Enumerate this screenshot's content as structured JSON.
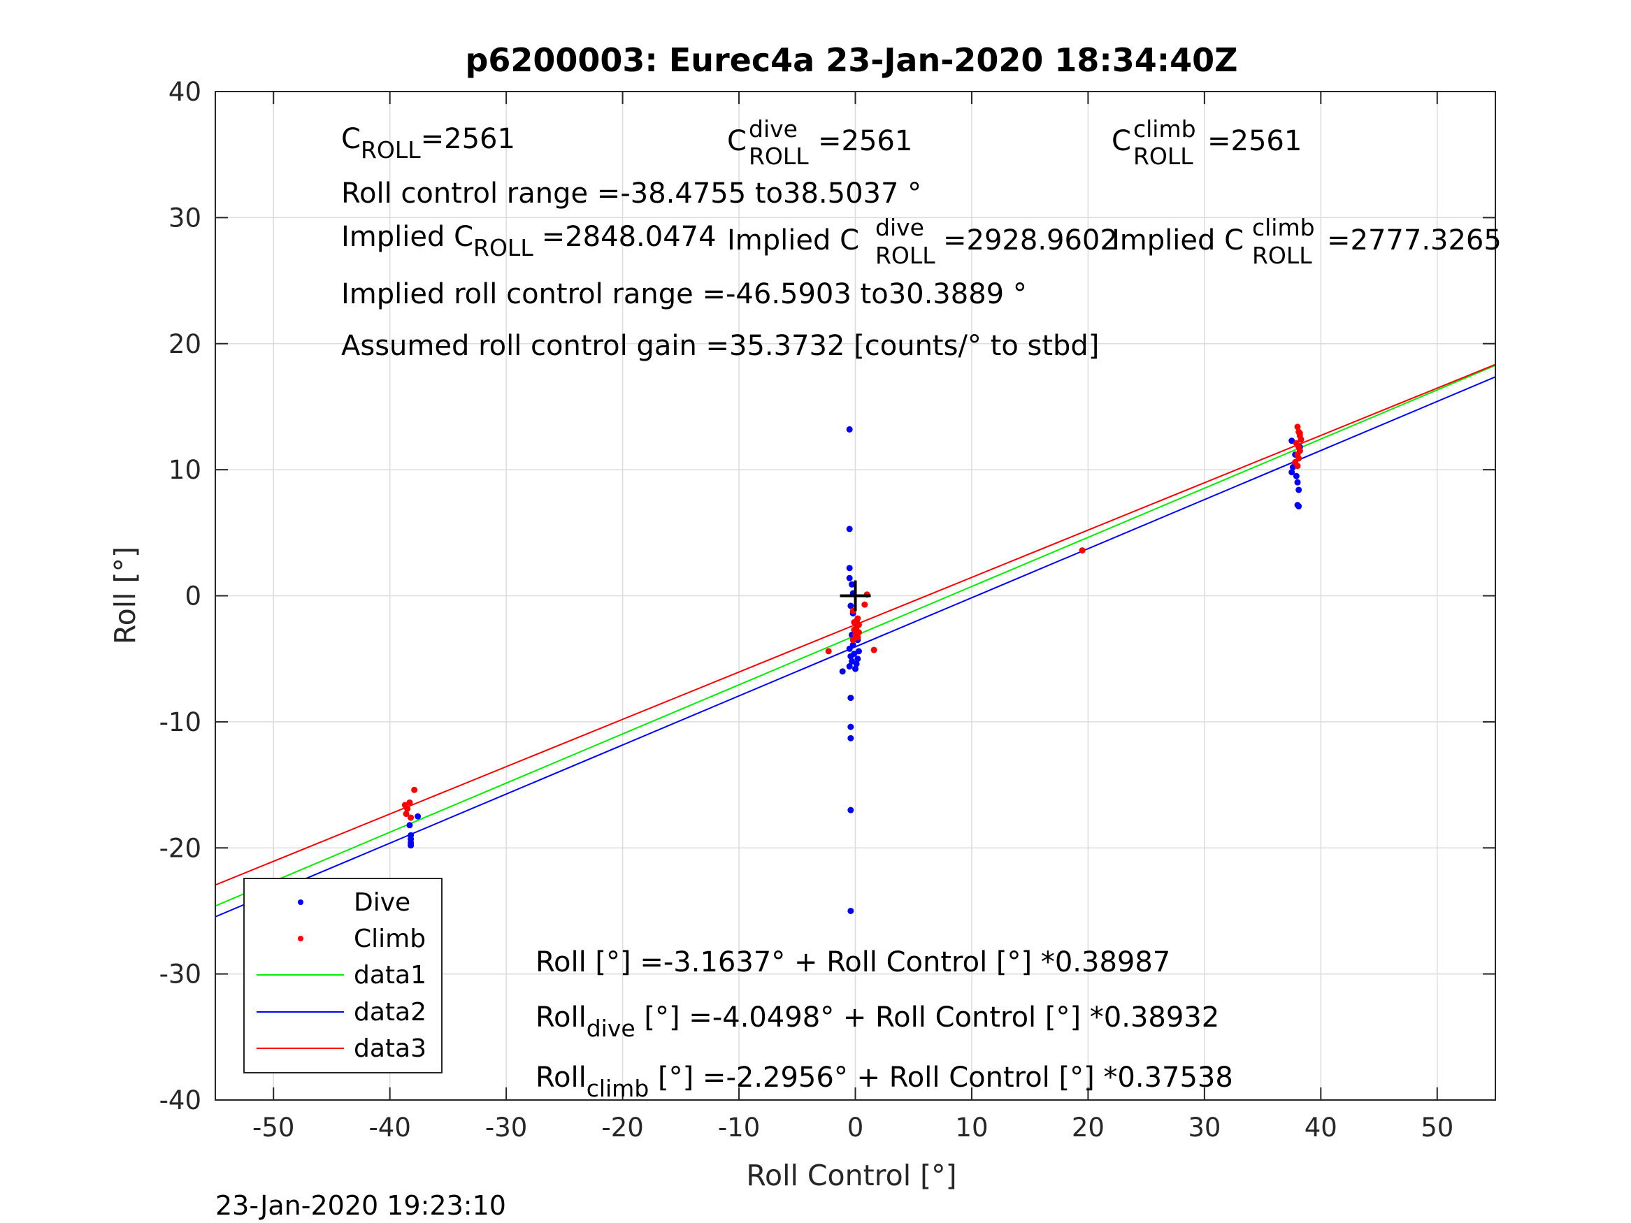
{
  "chart_data": {
    "type": "scatter",
    "title": "p6200003: Eurec4a 23-Jan-2020 18:34:40Z",
    "xlabel": "Roll Control [°]",
    "ylabel": "Roll [°]",
    "xlim": [
      -55,
      55
    ],
    "ylim": [
      -40,
      40
    ],
    "xticks": [
      -50,
      -40,
      -30,
      -20,
      -10,
      0,
      10,
      20,
      30,
      40,
      50
    ],
    "xtick_labels": [
      "-50",
      "-40",
      "-30",
      "-20",
      "-10",
      "0",
      "10",
      "20",
      "30",
      "40",
      "50"
    ],
    "yticks": [
      -40,
      -30,
      -20,
      -10,
      0,
      10,
      20,
      30,
      40
    ],
    "ytick_labels": [
      "-40",
      "-30",
      "-20",
      "-10",
      "0",
      "10",
      "20",
      "30",
      "40"
    ],
    "grid": true,
    "legend_position": "lower-left",
    "colors": {
      "dive": "#0000ff",
      "climb": "#ff0000",
      "data1": "#00ee00",
      "data2": "#0000ff",
      "data3": "#ff0000",
      "grid": "#dcdcdc"
    },
    "series": [
      {
        "name": "Dive",
        "kind": "points",
        "color": "#0000ff",
        "points": [
          [
            -0.5,
            13.2
          ],
          [
            -0.5,
            5.3
          ],
          [
            -0.5,
            2.2
          ],
          [
            -0.5,
            1.4
          ],
          [
            -0.3,
            0.9
          ],
          [
            -0.2,
            0.2
          ],
          [
            -0.4,
            -0.8
          ],
          [
            -0.2,
            -1.4
          ],
          [
            0.1,
            -2.0
          ],
          [
            -0.3,
            -3.1
          ],
          [
            0.2,
            -3.5
          ],
          [
            -0.2,
            -3.9
          ],
          [
            -0.5,
            -4.2
          ],
          [
            0.3,
            -4.4
          ],
          [
            -0.1,
            -4.6
          ],
          [
            -0.4,
            -4.8
          ],
          [
            0.2,
            -5.0
          ],
          [
            -0.3,
            -5.2
          ],
          [
            0.1,
            -5.4
          ],
          [
            -0.5,
            -5.6
          ],
          [
            0.0,
            -5.8
          ],
          [
            -1.1,
            -6.0
          ],
          [
            -0.4,
            -8.1
          ],
          [
            -0.4,
            -10.4
          ],
          [
            -0.4,
            -11.3
          ],
          [
            -0.4,
            -17.0
          ],
          [
            -0.4,
            -25.0
          ],
          [
            -38.3,
            -18.2
          ],
          [
            -38.2,
            -19.0
          ],
          [
            -38.2,
            -19.3
          ],
          [
            -38.2,
            -19.6
          ],
          [
            -38.2,
            -19.8
          ],
          [
            -37.6,
            -17.5
          ],
          [
            37.5,
            12.3
          ],
          [
            37.5,
            9.8
          ],
          [
            37.8,
            10.5
          ],
          [
            37.9,
            9.5
          ],
          [
            38.0,
            9.0
          ],
          [
            38.1,
            8.4
          ],
          [
            38.0,
            7.2
          ],
          [
            38.1,
            7.1
          ],
          [
            37.6,
            10.2
          ],
          [
            37.8,
            11.2
          ],
          [
            38.2,
            11.8
          ]
        ]
      },
      {
        "name": "Climb",
        "kind": "points",
        "color": "#ff0000",
        "points": [
          [
            1.0,
            0.1
          ],
          [
            0.8,
            -0.7
          ],
          [
            -0.2,
            -1.2
          ],
          [
            0.2,
            -1.8
          ],
          [
            -0.1,
            -2.1
          ],
          [
            0.3,
            -2.3
          ],
          [
            0.1,
            -2.5
          ],
          [
            -0.1,
            -2.7
          ],
          [
            0.3,
            -2.9
          ],
          [
            0.0,
            -3.1
          ],
          [
            0.2,
            -3.3
          ],
          [
            -0.2,
            -3.5
          ],
          [
            -2.3,
            -4.4
          ],
          [
            1.6,
            -4.3
          ],
          [
            -38.7,
            -16.6
          ],
          [
            -38.5,
            -16.9
          ],
          [
            -38.3,
            -16.4
          ],
          [
            -38.6,
            -17.3
          ],
          [
            -38.2,
            -17.6
          ],
          [
            -37.9,
            -15.4
          ],
          [
            38.0,
            13.4
          ],
          [
            38.1,
            13.0
          ],
          [
            38.2,
            12.7
          ],
          [
            38.3,
            12.4
          ],
          [
            37.9,
            12.1
          ],
          [
            38.1,
            11.8
          ],
          [
            38.2,
            11.5
          ],
          [
            38.0,
            11.2
          ],
          [
            38.1,
            10.9
          ],
          [
            37.8,
            10.6
          ],
          [
            38.0,
            10.3
          ],
          [
            38.2,
            12.9
          ],
          [
            19.5,
            3.6
          ]
        ]
      },
      {
        "name": "data1",
        "kind": "line",
        "color": "#00ee00",
        "intercept": -3.1637,
        "slope": 0.38987
      },
      {
        "name": "data2",
        "kind": "line",
        "color": "#0000ff",
        "intercept": -4.0498,
        "slope": 0.38932
      },
      {
        "name": "data3",
        "kind": "line",
        "color": "#ff0000",
        "intercept": -2.2956,
        "slope": 0.37538
      }
    ],
    "center_marker": [
      0,
      0
    ],
    "annotations": {
      "c_roll": {
        "base": "C",
        "sub": "ROLL",
        "value": "=2561"
      },
      "c_roll_dive": {
        "base": "C",
        "sup": "dive",
        "sub": "ROLL",
        "value": "=2561"
      },
      "c_roll_climb": {
        "base": "C",
        "sup": "climb",
        "sub": "ROLL",
        "value": "=2561"
      },
      "roll_control_range": "Roll control range =-38.4755 to38.5037 °",
      "implied_c_roll": {
        "prefix": "Implied C",
        "sub": "ROLL",
        "value": "=2848.0474"
      },
      "implied_c_roll_dive": {
        "prefix": "Implied C",
        "sup": "dive",
        "sub": "ROLL",
        "value": "=2928.9602"
      },
      "implied_c_roll_climb": {
        "prefix": "Implied C",
        "sup": "climb",
        "sub": "ROLL",
        "value": "=2777.3265"
      },
      "implied_range": "Implied roll control range =-46.5903 to30.3889 °",
      "gain": "Assumed roll control gain =35.3732 [counts/° to stbd]",
      "fit_all": "Roll [°] =-3.1637° + Roll Control [°] *0.38987",
      "fit_dive": {
        "base": "Roll",
        "sub": "dive",
        "rest": " [°] =-4.0498° + Roll Control [°] *0.38932"
      },
      "fit_climb": {
        "base": "Roll",
        "sub": "climb",
        "rest": " [°] =-2.2956° + Roll Control [°] *0.37538"
      }
    }
  },
  "footer_timestamp": "23-Jan-2020 19:23:10"
}
